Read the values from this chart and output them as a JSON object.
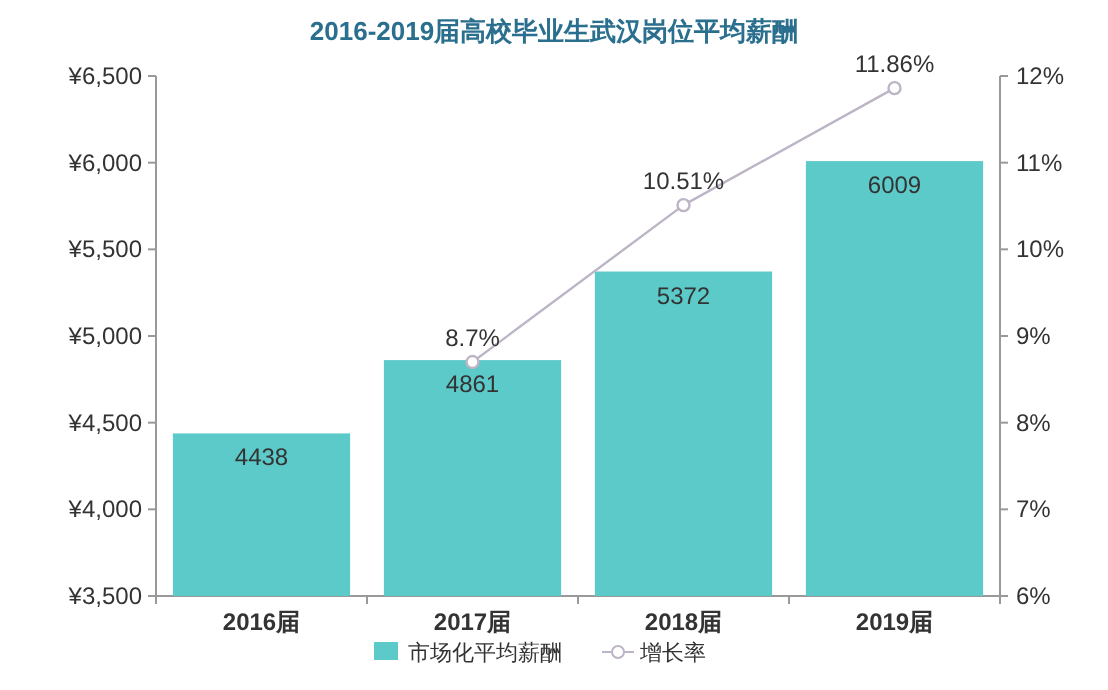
{
  "chart_data": {
    "type": "bar",
    "title": "2016-2019届高校毕业生武汉岗位平均薪酬",
    "categories": [
      "2016届",
      "2017届",
      "2018届",
      "2019届"
    ],
    "series": [
      {
        "name": "市场化平均薪酬",
        "color": "#5ccac9",
        "values": [
          4438,
          4861,
          5372,
          6009
        ],
        "value_labels": [
          "4438",
          "4861",
          "5372",
          "6009"
        ]
      },
      {
        "name": "增长率",
        "type": "line",
        "axis": "y2",
        "color": "#bdb5c6",
        "marker": "circle",
        "values": [
          null,
          8.7,
          10.51,
          11.86
        ],
        "value_labels": [
          null,
          "8.7%",
          "10.51%",
          "11.86%"
        ]
      }
    ],
    "ylim": [
      3500,
      6500
    ],
    "yticks": [
      {
        "value": 3500,
        "label": "¥3,500"
      },
      {
        "value": 4000,
        "label": "¥4,000"
      },
      {
        "value": 4500,
        "label": "¥4,500"
      },
      {
        "value": 5000,
        "label": "¥5,000"
      },
      {
        "value": 5500,
        "label": "¥5,500"
      },
      {
        "value": 6000,
        "label": "¥6,000"
      },
      {
        "value": 6500,
        "label": "¥6,500"
      }
    ],
    "y2lim": [
      6,
      12
    ],
    "y2ticks": [
      {
        "value": 6,
        "label": "6%"
      },
      {
        "value": 7,
        "label": "7%"
      },
      {
        "value": 8,
        "label": "8%"
      },
      {
        "value": 9,
        "label": "9%"
      },
      {
        "value": 10,
        "label": "10%"
      },
      {
        "value": 11,
        "label": "11%"
      },
      {
        "value": 12,
        "label": "12%"
      }
    ],
    "legend": "bottom"
  }
}
